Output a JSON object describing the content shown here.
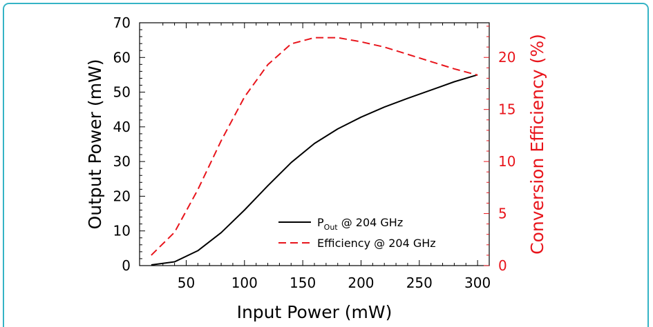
{
  "chart_data": {
    "type": "line",
    "xlabel": "Input Power (mW)",
    "ylabel": "Output Power (mW)",
    "y2label": "Conversion Efficiency (%)",
    "xlim": [
      10,
      310
    ],
    "ylim": [
      0,
      70
    ],
    "y2lim": [
      0,
      23.33
    ],
    "xticks": [
      50,
      100,
      150,
      200,
      250,
      300
    ],
    "yticks": [
      0,
      10,
      20,
      30,
      40,
      50,
      60,
      70
    ],
    "y2ticks": [
      0,
      5,
      10,
      15,
      20
    ],
    "grid": false,
    "legend_position": "lower-right",
    "colors": {
      "output": "#000000",
      "efficiency": "#e8141b",
      "frame": "#34b3c5"
    },
    "series": [
      {
        "name": "P_Out @ 204 GHz",
        "legend_main": "P",
        "legend_sub": "Out",
        "legend_rest": " @ 204 GHz",
        "axis": "left",
        "style": "solid",
        "color": "#000000",
        "x": [
          20,
          40,
          60,
          80,
          100,
          120,
          140,
          160,
          180,
          200,
          220,
          240,
          260,
          280,
          300
        ],
        "y": [
          0.2,
          1.1,
          4.3,
          9.5,
          16.0,
          23.0,
          29.7,
          35.2,
          39.4,
          42.8,
          45.7,
          48.2,
          50.6,
          53.0,
          55.0
        ]
      },
      {
        "name": "Efficiency @ 204 GHz",
        "legend_main": "Efficiency @ 204 GHz",
        "axis": "right",
        "style": "dashed",
        "color": "#e8141b",
        "x": [
          20,
          40,
          60,
          80,
          100,
          120,
          140,
          160,
          180,
          200,
          220,
          240,
          260,
          280,
          300
        ],
        "y": [
          1.0,
          3.2,
          7.3,
          12.0,
          16.2,
          19.3,
          21.3,
          21.9,
          21.9,
          21.5,
          21.0,
          20.3,
          19.6,
          18.9,
          18.3
        ]
      }
    ]
  }
}
